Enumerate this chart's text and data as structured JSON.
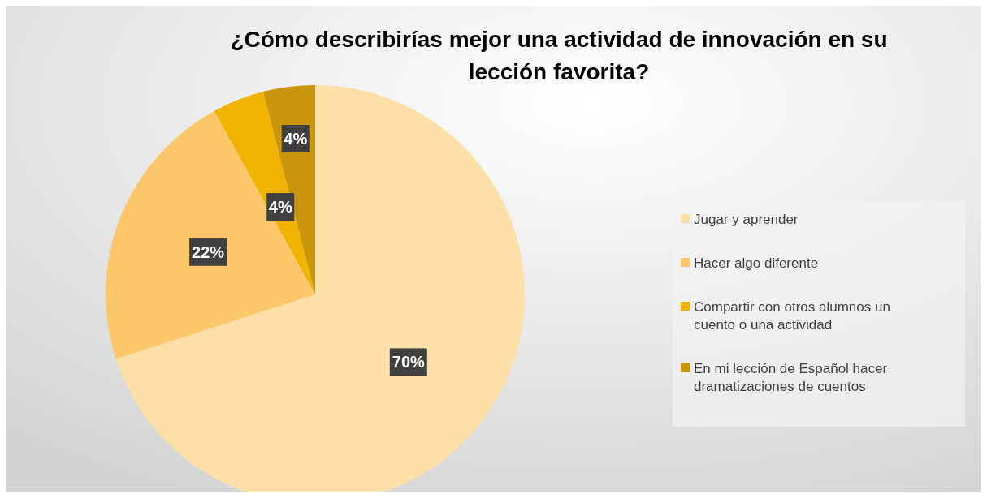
{
  "chart_data": {
    "type": "pie",
    "title": "¿Cómo describirías mejor una actividad de innovación en su lección favorita?",
    "categories": [
      "Jugar y aprender",
      "Hacer algo diferente",
      "Compartir con otros alumnos un cuento o una actividad",
      "En mi lección de Español hacer dramatizaciones de cuentos"
    ],
    "values": [
      70,
      22,
      4,
      4
    ],
    "colors": [
      "#fddfa8",
      "#fcc76a",
      "#f0b400",
      "#c9960c"
    ],
    "value_labels": [
      "70%",
      "22%",
      "4%",
      "4%"
    ],
    "legend": "right"
  }
}
